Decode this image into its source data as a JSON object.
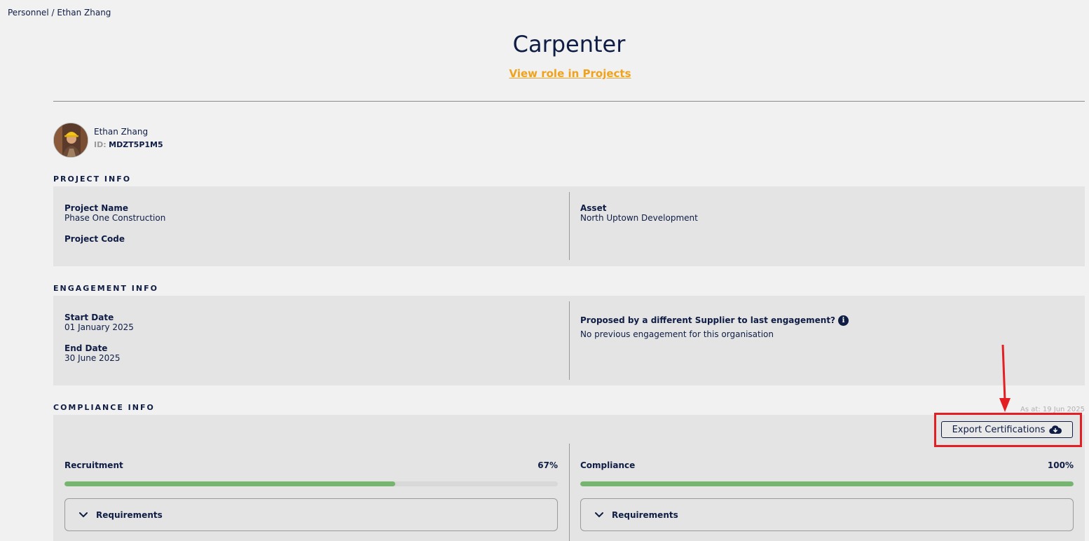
{
  "breadcrumb": {
    "parent": "Personnel",
    "separator": "/",
    "current": "Ethan Zhang"
  },
  "page": {
    "title": "Carpenter",
    "role_link": "View role in Projects"
  },
  "person": {
    "name": "Ethan Zhang",
    "id_label": "ID:",
    "id_value": "MDZT5P1M5"
  },
  "project_info": {
    "heading": "PROJECT INFO",
    "project_name_label": "Project Name",
    "project_name_value": "Phase One Construction",
    "project_code_label": "Project Code",
    "project_code_value": "",
    "asset_label": "Asset",
    "asset_value": "North Uptown Development"
  },
  "engagement_info": {
    "heading": "ENGAGEMENT INFO",
    "start_date_label": "Start Date",
    "start_date_value": "01 January 2025",
    "end_date_label": "End Date",
    "end_date_value": "30 June 2025",
    "proposed_label": "Proposed by a different Supplier to last engagement?",
    "proposed_value": "No previous engagement for this organisation"
  },
  "compliance_info": {
    "heading": "COMPLIANCE INFO",
    "as_at": "As at: 19 Jun 2025",
    "export_label": "Export Certifications",
    "recruitment_label": "Recruitment",
    "recruitment_pct": "67%",
    "recruitment_value": 0.67,
    "compliance_label": "Compliance",
    "compliance_pct": "100%",
    "compliance_value": 1.0,
    "requirements_label": "Requirements"
  },
  "colors": {
    "navy": "#0f1d45",
    "accent_orange": "#f0a21d",
    "progress_green": "#76b570",
    "annotation_red": "#e41f24"
  }
}
